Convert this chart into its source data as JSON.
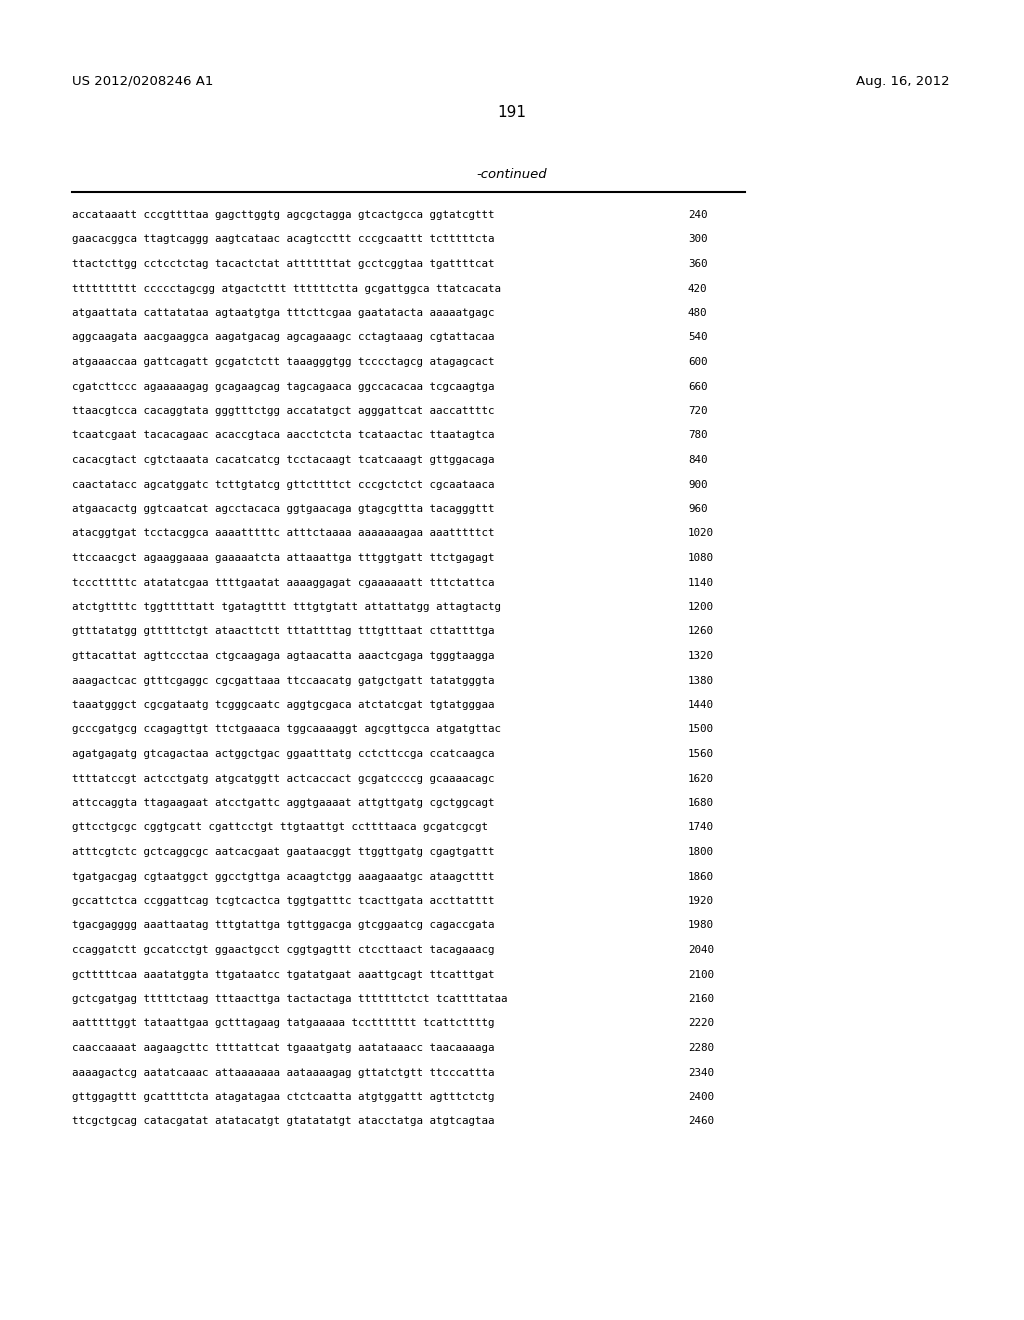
{
  "header_left": "US 2012/0208246 A1",
  "header_right": "Aug. 16, 2012",
  "page_number": "191",
  "continued_label": "-continued",
  "background_color": "#ffffff",
  "text_color": "#000000",
  "font_size_header": 9.5,
  "font_size_page": 11,
  "font_size_continued": 9.5,
  "font_size_sequence": 7.8,
  "sequence_lines": [
    [
      "accataaatt cccgttttaa gagcttggtg agcgctagga gtcactgcca ggtatcgttt",
      "240"
    ],
    [
      "gaacacggca ttagtcaggg aagtcataac acagtccttt cccgcaattt tctttttcta",
      "300"
    ],
    [
      "ttactcttgg cctcctctag tacactctat atttttttat gcctcggtaa tgattttcat",
      "360"
    ],
    [
      "tttttttttt ccccctagcgg atgactcttt ttttttctta gcgattggca ttatcacata",
      "420"
    ],
    [
      "atgaattata cattatataa agtaatgtga tttcttcgaa gaatatacta aaaaatgagc",
      "480"
    ],
    [
      "aggcaagata aacgaaggca aagatgacag agcagaaagc cctagtaaag cgtattacaa",
      "540"
    ],
    [
      "atgaaaccaa gattcagatt gcgatctctt taaagggtgg tcccctagcg atagagcact",
      "600"
    ],
    [
      "cgatcttccc agaaaaagag gcagaagcag tagcagaaca ggccacacaa tcgcaagtga",
      "660"
    ],
    [
      "ttaacgtcca cacaggtata gggtttctgg accatatgct agggattcat aaccattttc",
      "720"
    ],
    [
      "tcaatcgaat tacacagaac acaccgtaca aacctctcta tcataactac ttaatagtca",
      "780"
    ],
    [
      "cacacgtact cgtctaaata cacatcatcg tcctacaagt tcatcaaagt gttggacaga",
      "840"
    ],
    [
      "caactatacc agcatggatc tcttgtatcg gttcttttct cccgctctct cgcaataaca",
      "900"
    ],
    [
      "atgaacactg ggtcaatcat agcctacaca ggtgaacaga gtagcgttta tacagggttt",
      "960"
    ],
    [
      "atacggtgat tcctacggca aaaatttttc atttctaaaa aaaaaaagaa aaatttttct",
      "1020"
    ],
    [
      "ttccaacgct agaaggaaaa gaaaaatcta attaaattga tttggtgatt ttctgagagt",
      "1080"
    ],
    [
      "tccctttttc atatatcgaa ttttgaatat aaaaggagat cgaaaaaatt tttctattca",
      "1140"
    ],
    [
      "atctgttttc tggtttttatt tgatagtttt tttgtgtatt attattatgg attagtactg",
      "1200"
    ],
    [
      "gtttatatgg gtttttctgt ataacttctt tttattttag tttgtttaat cttattttga",
      "1260"
    ],
    [
      "gttacattat agttccctaa ctgcaagaga agtaacatta aaactcgaga tgggtaagga",
      "1320"
    ],
    [
      "aaagactcac gtttcgaggc cgcgattaaa ttccaacatg gatgctgatt tatatgggta",
      "1380"
    ],
    [
      "taaatgggct cgcgataatg tcgggcaatc aggtgcgaca atctatcgat tgtatgggaa",
      "1440"
    ],
    [
      "gcccgatgcg ccagagttgt ttctgaaaca tggcaaaaggt agcgttgcca atgatgttac",
      "1500"
    ],
    [
      "agatgagatg gtcagactaa actggctgac ggaatttatg cctcttccga ccatcaagca",
      "1560"
    ],
    [
      "ttttatccgt actcctgatg atgcatggtt actcaccact gcgatccccg gcaaaacagc",
      "1620"
    ],
    [
      "attccaggta ttagaagaat atcctgattc aggtgaaaat attgttgatg cgctggcagt",
      "1680"
    ],
    [
      "gttcctgcgc cggtgcatt cgattcctgt ttgtaattgt ccttttaaca gcgatcgcgt",
      "1740"
    ],
    [
      "atttcgtctc gctcaggcgc aatcacgaat gaataacggt ttggttgatg cgagtgattt",
      "1800"
    ],
    [
      "tgatgacgag cgtaatggct ggcctgttga acaagtctgg aaagaaatgc ataagctttt",
      "1860"
    ],
    [
      "gccattctca ccggattcag tcgtcactca tggtgatttc tcacttgata accttatttt",
      "1920"
    ],
    [
      "tgacgagggg aaattaatag tttgtattga tgttggacga gtcggaatcg cagaccgata",
      "1980"
    ],
    [
      "ccaggatctt gccatcctgt ggaactgcct cggtgagttt ctccttaact tacagaaacg",
      "2040"
    ],
    [
      "gctttttcaa aaatatggta ttgataatcc tgatatgaat aaattgcagt ttcatttgat",
      "2100"
    ],
    [
      "gctcgatgag tttttctaag tttaacttga tactactaga tttttttctct tcattttataa",
      "2160"
    ],
    [
      "aatttttggt tataattgaa gctttagaag tatgaaaaa tccttttttt tcattcttttg",
      "2220"
    ],
    [
      "caaccaaaat aagaagcttc ttttattcat tgaaatgatg aatataaacc taacaaaaga",
      "2280"
    ],
    [
      "aaaagactcg aatatcaaac attaaaaaaa aataaaagag gttatctgtt ttcccattta",
      "2340"
    ],
    [
      "gttggagttt gcattttcta atagatagaa ctctcaatta atgtggattt agtttctctg",
      "2400"
    ],
    [
      "ttcgctgcag catacgatat atatacatgt gtatatatgt atacctatga atgtcagtaa",
      "2460"
    ]
  ]
}
